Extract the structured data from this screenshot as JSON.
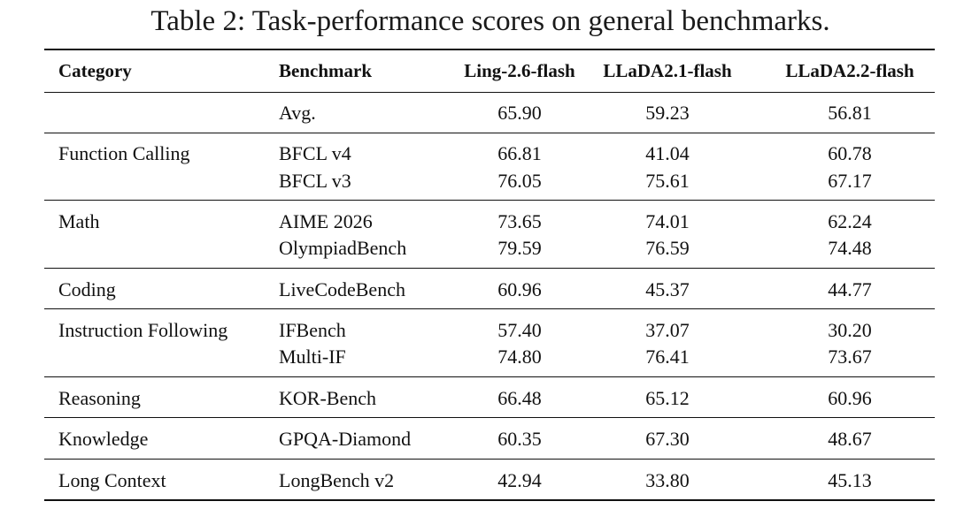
{
  "caption": "Table 2: Task-performance scores on general benchmarks.",
  "headers": {
    "category": "Category",
    "benchmark": "Benchmark",
    "model1": "Ling-2.6-flash",
    "model2": "LLaDA2.1-flash",
    "model3": "LLaDA2.2-flash"
  },
  "rows": [
    {
      "category": "",
      "benchmark": "Avg.",
      "v1": "65.90",
      "v2": "59.23",
      "v3": "56.81"
    },
    {
      "category": "Function Calling",
      "benchmark": "BFCL v4",
      "v1": "66.81",
      "v2": "41.04",
      "v3": "60.78"
    },
    {
      "category": "",
      "benchmark": "BFCL v3",
      "v1": "76.05",
      "v2": "75.61",
      "v3": "67.17"
    },
    {
      "category": "Math",
      "benchmark": "AIME 2026",
      "v1": "73.65",
      "v2": "74.01",
      "v3": "62.24"
    },
    {
      "category": "",
      "benchmark": "OlympiadBench",
      "v1": "79.59",
      "v2": "76.59",
      "v3": "74.48"
    },
    {
      "category": "Coding",
      "benchmark": "LiveCodeBench",
      "v1": "60.96",
      "v2": "45.37",
      "v3": "44.77"
    },
    {
      "category": "Instruction Following",
      "benchmark": "IFBench",
      "v1": "57.40",
      "v2": "37.07",
      "v3": "30.20"
    },
    {
      "category": "",
      "benchmark": "Multi-IF",
      "v1": "74.80",
      "v2": "76.41",
      "v3": "73.67"
    },
    {
      "category": "Reasoning",
      "benchmark": "KOR-Bench",
      "v1": "66.48",
      "v2": "65.12",
      "v3": "60.96"
    },
    {
      "category": "Knowledge",
      "benchmark": "GPQA-Diamond",
      "v1": "60.35",
      "v2": "67.30",
      "v3": "48.67"
    },
    {
      "category": "Long Context",
      "benchmark": "LongBench v2",
      "v1": "42.94",
      "v2": "33.80",
      "v3": "45.13"
    }
  ]
}
